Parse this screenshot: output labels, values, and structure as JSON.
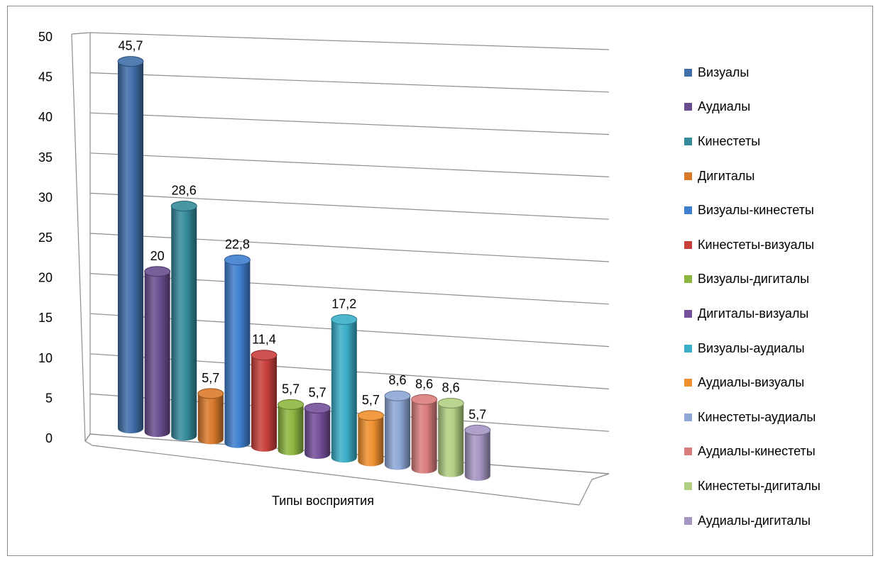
{
  "chart_data": {
    "type": "bar",
    "title": "",
    "xlabel": "Типы восприятия",
    "ylabel": "",
    "ylim": [
      0,
      50
    ],
    "y_ticks": [
      0,
      5,
      10,
      15,
      20,
      25,
      30,
      35,
      40,
      45,
      50
    ],
    "grid": true,
    "legend_position": "right",
    "categories": [
      "Типы восприятия"
    ],
    "series": [
      {
        "name": "Визуалы",
        "values": [
          45.7
        ],
        "label": "45,7",
        "color": "#3f6ea8"
      },
      {
        "name": "Аудиалы",
        "values": [
          20
        ],
        "label": "20",
        "color": "#6a4d8f"
      },
      {
        "name": "Кинестеты",
        "values": [
          28.6
        ],
        "label": "28,6",
        "color": "#358a9b"
      },
      {
        "name": "Дигиталы",
        "values": [
          5.7
        ],
        "label": "5,7",
        "color": "#d97a2b"
      },
      {
        "name": "Визуалы-кинестеты",
        "values": [
          22.8
        ],
        "label": "22,8",
        "color": "#3f7fcf"
      },
      {
        "name": "Кинестеты-визуалы",
        "values": [
          11.4
        ],
        "label": "11,4",
        "color": "#c8403c"
      },
      {
        "name": "Визуалы-дигиталы",
        "values": [
          5.7
        ],
        "label": "5,7",
        "color": "#8db63f"
      },
      {
        "name": "Дигиталы-визуалы",
        "values": [
          5.7
        ],
        "label": "5,7",
        "color": "#744f9a"
      },
      {
        "name": "Визуалы-аудиалы",
        "values": [
          17.2
        ],
        "label": "17,2",
        "color": "#3aaec7"
      },
      {
        "name": "Аудиалы-визуалы",
        "values": [
          5.7
        ],
        "label": "5,7",
        "color": "#f0902e"
      },
      {
        "name": "Кинестеты-аудиалы",
        "values": [
          8.6
        ],
        "label": "8,6",
        "color": "#8ea7d6"
      },
      {
        "name": "Аудиалы-кинестеты",
        "values": [
          8.6
        ],
        "label": "8,6",
        "color": "#d97d7c"
      },
      {
        "name": "Кинестеты-дигиталы",
        "values": [
          8.6
        ],
        "label": "8,6",
        "color": "#b2d083"
      },
      {
        "name": "Аудиалы-дигиталы",
        "values": [
          5.7
        ],
        "label": "5,7",
        "color": "#a595c2"
      }
    ]
  }
}
